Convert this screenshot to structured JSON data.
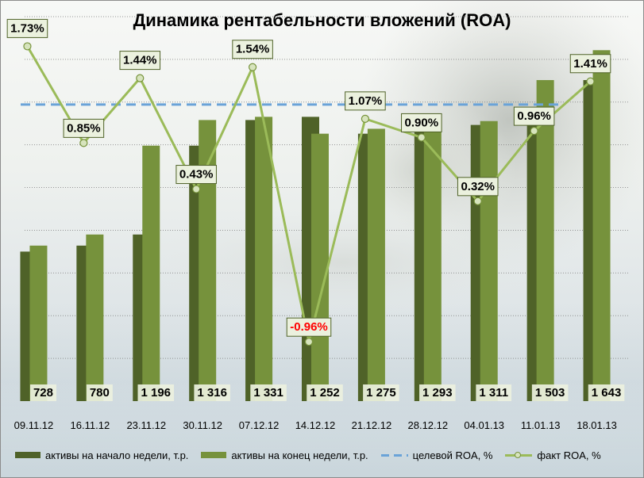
{
  "chart_data": {
    "type": "bar+line",
    "title": "Динамика рентабельности вложений (ROA)",
    "categories": [
      "09.11.12",
      "16.11.12",
      "23.11.12",
      "30.11.12",
      "07.12.12",
      "14.12.12",
      "21.12.12",
      "28.12.12",
      "04.01.13",
      "11.01.13",
      "18.01.13"
    ],
    "series": [
      {
        "name": "активы на начало недели, т.р.",
        "kind": "bar",
        "color": "#4f6228",
        "values": [
          700,
          728,
          780,
          1196,
          1316,
          1331,
          1252,
          1275,
          1293,
          1311,
          1503
        ]
      },
      {
        "name": "активы на конец недели, т.р.",
        "kind": "bar",
        "color": "#76923c",
        "values": [
          728,
          780,
          1196,
          1316,
          1331,
          1252,
          1275,
          1293,
          1311,
          1503,
          1643
        ]
      },
      {
        "name": "целевой ROA, %",
        "kind": "line-dashed",
        "color": "#6aa3d8",
        "value": 1.2
      },
      {
        "name": "факт ROA, %",
        "kind": "line",
        "color": "#9bbb59",
        "values": [
          1.73,
          0.85,
          1.44,
          0.43,
          1.54,
          -0.96,
          1.07,
          0.9,
          0.32,
          0.96,
          1.41
        ]
      }
    ],
    "bar_value_labels": [
      "728",
      "780",
      "1 196",
      "1 316",
      "1 331",
      "1 252",
      "1 275",
      "1 293",
      "1 311",
      "1 503",
      "1 643"
    ],
    "roa_labels": [
      "1.73%",
      "0.85%",
      "1.44%",
      "0.43%",
      "1.54%",
      "-0.96%",
      "1.07%",
      "0.90%",
      "0.32%",
      "0.96%",
      "1.41%"
    ],
    "bar_axis_range": [
      0,
      1800
    ],
    "roa_axis_range": [
      -1.5,
      2.0
    ],
    "grid": true,
    "legend_position": "bottom"
  },
  "colors": {
    "bar_start": "#4f6228",
    "bar_end": "#76923c",
    "target_line": "#6aa3d8",
    "roa_line": "#9bbb59",
    "label_box_fill": "#ebf1de",
    "label_box_border": "#4f6228",
    "negative_text": "#ff0000"
  }
}
